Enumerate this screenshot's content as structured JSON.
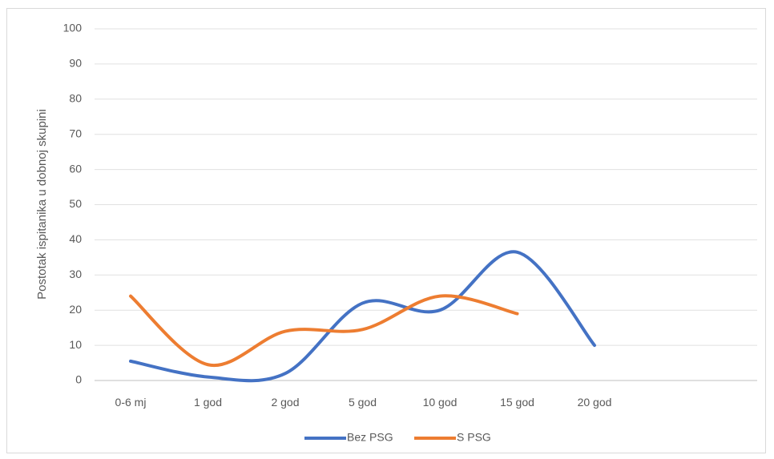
{
  "chart_data": {
    "type": "line",
    "smooth": true,
    "title": "",
    "xlabel": "",
    "ylabel": "Postotak ispitanika u dobnoj skupini",
    "ylim": [
      0,
      100
    ],
    "ytick_step": 10,
    "grid": true,
    "legend_position": "bottom",
    "categories": [
      "0-6 mj",
      "1 god",
      "2 god",
      "5 god",
      "10 god",
      "15 god",
      "20 god"
    ],
    "series": [
      {
        "name": "Bez PSG",
        "color": "#4472C4",
        "values": [
          5.5,
          1,
          2,
          22,
          20,
          36.5,
          10
        ]
      },
      {
        "name": "S PSG",
        "color": "#ED7D31",
        "values": [
          24,
          4.5,
          14,
          14.5,
          24,
          19,
          null
        ]
      }
    ]
  }
}
